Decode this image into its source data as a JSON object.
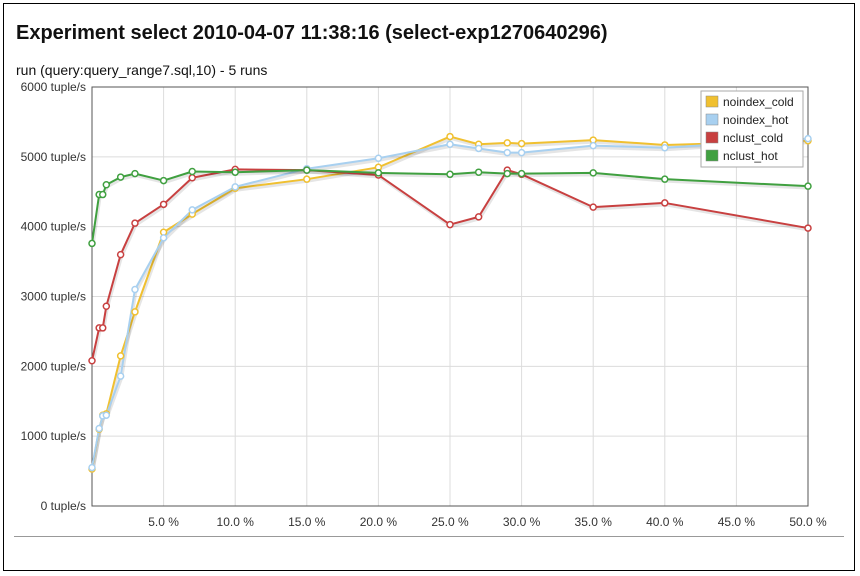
{
  "header": {
    "title": "Experiment select 2010-04-07 11:38:16 (select-exp1270640296)",
    "subtitle": "run (query:query_range7.sql,10) - 5 runs"
  },
  "chart_data": {
    "type": "line",
    "title": "Experiment select 2010-04-07 11:38:16 (select-exp1270640296)",
    "subtitle": "run (query:query_range7.sql,10) - 5 runs",
    "xlabel": "",
    "ylabel": "",
    "xlim": [
      0,
      50
    ],
    "ylim": [
      0,
      6000
    ],
    "x_ticks": [
      5,
      10,
      15,
      20,
      25,
      30,
      35,
      40,
      45,
      50
    ],
    "x_tick_labels": [
      "5.0 %",
      "10.0 %",
      "15.0 %",
      "20.0 %",
      "25.0 %",
      "30.0 %",
      "35.0 %",
      "40.0 %",
      "45.0 %",
      "50.0 %"
    ],
    "y_ticks": [
      0,
      1000,
      2000,
      3000,
      4000,
      5000,
      6000
    ],
    "y_tick_labels": [
      "0 tuple/s",
      "1000 tuple/s",
      "2000 tuple/s",
      "3000 tuple/s",
      "4000 tuple/s",
      "5000 tuple/s",
      "6000 tuple/s"
    ],
    "grid": true,
    "legend_position": "top-right",
    "series": [
      {
        "name": "noindex_cold",
        "color": "#f0c030",
        "x": [
          0,
          0.5,
          0.75,
          1,
          2,
          3,
          5,
          7,
          10,
          15,
          20,
          25,
          27,
          29,
          30,
          35,
          40,
          50
        ],
        "y": [
          530,
          1100,
          1300,
          1320,
          2150,
          2780,
          3920,
          4180,
          4550,
          4680,
          4850,
          5290,
          5180,
          5200,
          5190,
          5240,
          5170,
          5230
        ]
      },
      {
        "name": "noindex_hot",
        "color": "#a8d0f0",
        "x": [
          0,
          0.5,
          0.75,
          1,
          2,
          3,
          5,
          7,
          10,
          15,
          20,
          25,
          27,
          29,
          30,
          35,
          40,
          50
        ],
        "y": [
          550,
          1110,
          1290,
          1300,
          1860,
          3100,
          3840,
          4240,
          4570,
          4830,
          4980,
          5180,
          5120,
          5060,
          5060,
          5160,
          5130,
          5260
        ]
      },
      {
        "name": "nclust_cold",
        "color": "#c84040",
        "x": [
          0,
          0.5,
          0.75,
          1,
          2,
          3,
          5,
          7,
          10,
          15,
          20,
          25,
          27,
          29,
          30,
          35,
          40,
          50
        ],
        "y": [
          2080,
          2550,
          2550,
          2860,
          3600,
          4050,
          4320,
          4700,
          4820,
          4810,
          4740,
          4030,
          4140,
          4810,
          4750,
          4280,
          4340,
          3980
        ]
      },
      {
        "name": "nclust_hot",
        "color": "#40a040",
        "x": [
          0,
          0.5,
          0.75,
          1,
          2,
          3,
          5,
          7,
          10,
          15,
          20,
          25,
          27,
          29,
          30,
          35,
          40,
          50
        ],
        "y": [
          3760,
          4460,
          4460,
          4600,
          4710,
          4760,
          4660,
          4790,
          4780,
          4810,
          4770,
          4750,
          4780,
          4760,
          4760,
          4770,
          4680,
          4580
        ]
      }
    ]
  }
}
